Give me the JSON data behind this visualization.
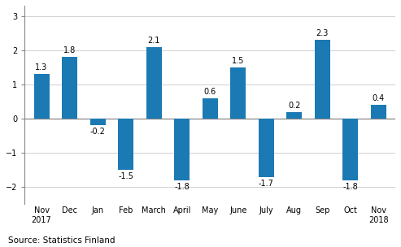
{
  "categories": [
    "Nov\n2017",
    "Dec",
    "Jan",
    "Feb",
    "March",
    "April",
    "May",
    "June",
    "July",
    "Aug",
    "Sep",
    "Oct",
    "Nov\n2018"
  ],
  "values": [
    1.3,
    1.8,
    -0.2,
    -1.5,
    2.1,
    -1.8,
    0.6,
    1.5,
    -1.7,
    0.2,
    2.3,
    -1.8,
    0.4
  ],
  "bar_color": "#1b7ab4",
  "ylim": [
    -2.5,
    3.3
  ],
  "yticks": [
    -2,
    -1,
    0,
    1,
    2,
    3
  ],
  "source_text": "Source: Statistics Finland",
  "label_fontsize": 7,
  "tick_fontsize": 7,
  "source_fontsize": 7.5,
  "bar_width": 0.55,
  "background_color": "#ffffff",
  "grid_color": "#d0d0d0",
  "zero_line_color": "#888888",
  "spine_color": "#888888"
}
